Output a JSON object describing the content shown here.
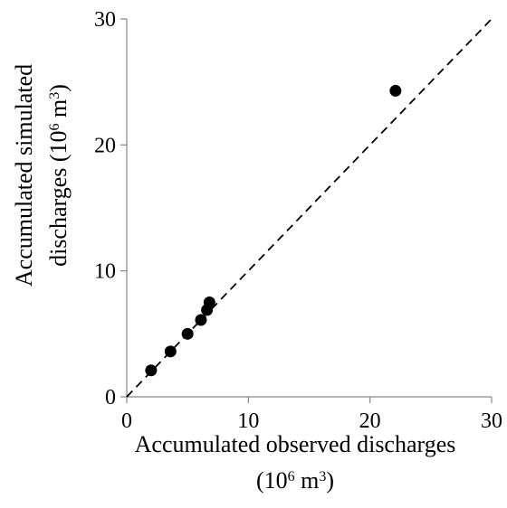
{
  "chart_data": {
    "type": "scatter",
    "title": "",
    "xlabel_line1": "Accumulated observed discharges",
    "xlabel_line2_prefix": "(10",
    "xlabel_line2_exp": "6",
    "xlabel_line2_suffix": " m",
    "xlabel_line2_unit_exp": "3",
    "xlabel_line2_close": ")",
    "ylabel_line1": "Accumulated simulated",
    "ylabel_line2_prefix": "discharges (10",
    "ylabel_line2_exp": "6",
    "ylabel_line2_suffix": " m",
    "ylabel_line2_unit_exp": "3",
    "ylabel_line2_close": ")",
    "xlim": [
      0,
      30
    ],
    "ylim": [
      0,
      30
    ],
    "xticks": [
      0,
      10,
      20,
      30
    ],
    "yticks": [
      0,
      10,
      20,
      30
    ],
    "grid": false,
    "reference_line": {
      "style": "dashed",
      "from": [
        0,
        0
      ],
      "to": [
        30,
        30
      ]
    },
    "points": [
      {
        "x": 2.0,
        "y": 2.1
      },
      {
        "x": 3.6,
        "y": 3.6
      },
      {
        "x": 5.0,
        "y": 5.0
      },
      {
        "x": 6.1,
        "y": 6.1
      },
      {
        "x": 6.6,
        "y": 6.9
      },
      {
        "x": 6.8,
        "y": 7.5
      },
      {
        "x": 22.1,
        "y": 24.3
      }
    ],
    "marker_color": "#000000"
  }
}
